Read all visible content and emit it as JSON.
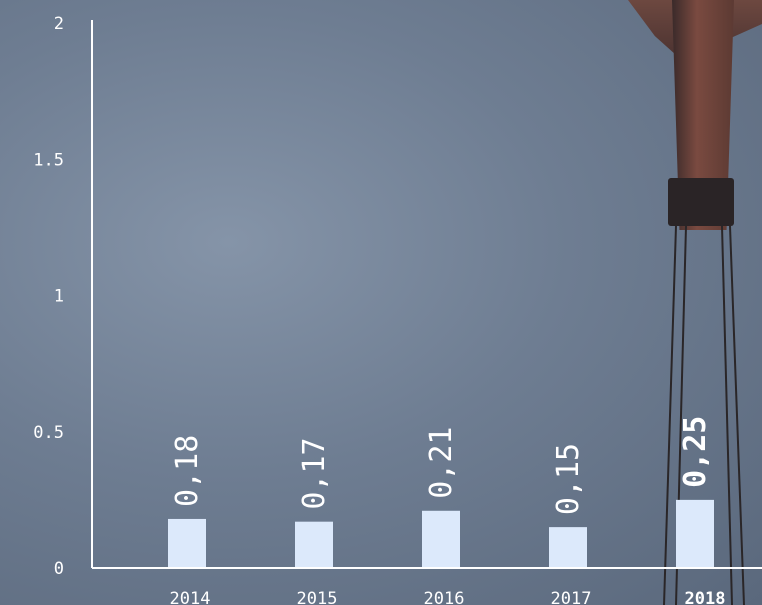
{
  "chart_data": {
    "type": "bar",
    "categories": [
      "2014",
      "2015",
      "2016",
      "2017",
      "2018"
    ],
    "values": [
      0.18,
      0.17,
      0.21,
      0.15,
      0.25
    ],
    "value_labels": [
      "0,18",
      "0,17",
      "0,21",
      "0,15",
      "0,25"
    ],
    "highlight_index": 4,
    "y_ticks": [
      "0",
      "0.5",
      "1",
      "1.5",
      "2"
    ],
    "ylim": [
      0,
      2
    ],
    "grid": false,
    "bar_color": "#dce9fb",
    "axis_color": "#ffffff"
  }
}
